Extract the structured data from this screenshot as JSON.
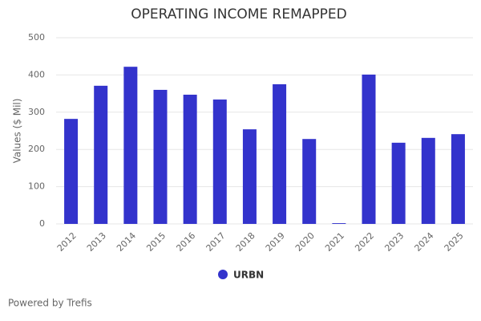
{
  "chart_data": {
    "type": "bar",
    "title": "OPERATING INCOME REMAPPED",
    "y_label": "Values ($ Mil)",
    "categories": [
      "2012",
      "2013",
      "2014",
      "2015",
      "2016",
      "2017",
      "2018",
      "2019",
      "2020",
      "2021",
      "2022",
      "2023",
      "2024",
      "2025"
    ],
    "series": [
      {
        "name": "URBN",
        "color": "#3333cc",
        "values": [
          282,
          371,
          422,
          360,
          347,
          334,
          254,
          375,
          228,
          2,
          401,
          218,
          231,
          241
        ]
      }
    ],
    "ylim": [
      0,
      500
    ],
    "yticks": [
      0,
      100,
      200,
      300,
      400,
      500
    ],
    "grid": true,
    "legend": "bottom"
  },
  "footer": "Powered by Trefis"
}
